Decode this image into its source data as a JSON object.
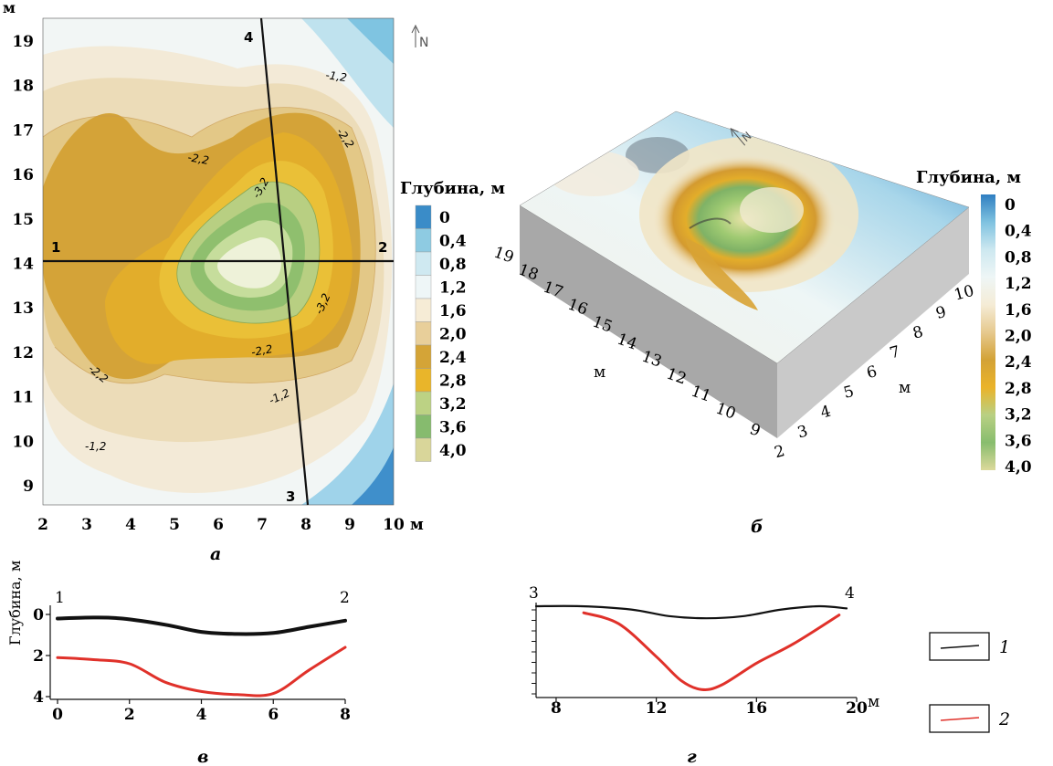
{
  "map_panel": {
    "unit_y": "м",
    "unit_x": "м",
    "x_ticks": [
      "2",
      "3",
      "4",
      "5",
      "6",
      "7",
      "8",
      "9",
      "10"
    ],
    "y_ticks": [
      "19",
      "18",
      "17",
      "16",
      "15",
      "14",
      "13",
      "12",
      "11",
      "10",
      "9"
    ],
    "north": "N",
    "profile_points": [
      "1",
      "2",
      "3",
      "4"
    ],
    "contour_labels": [
      "-1,2",
      "-2,2",
      "-3,2",
      "-2,2",
      "-3,2",
      "-2,2",
      "-2,2",
      "-1,2",
      "-1,2"
    ],
    "caption": "а"
  },
  "legend": {
    "title": "Глубина, м",
    "levels": [
      "0",
      "0,4",
      "0,8",
      "1,2",
      "1,6",
      "2,0",
      "2,4",
      "2,8",
      "3,2",
      "3,6",
      "4,0"
    ],
    "colors": [
      "#3a8cc8",
      "#8ecbe2",
      "#cfe9f1",
      "#eef6f7",
      "#f6ecd6",
      "#e8cf9a",
      "#d4a437",
      "#e9b52a",
      "#bcd284",
      "#86bb6e",
      "#d9d69a"
    ]
  },
  "block_panel": {
    "north": "N",
    "y_axis_ticks": [
      "19",
      "18",
      "17",
      "16",
      "15",
      "14",
      "13",
      "12",
      "11",
      "10",
      "9"
    ],
    "y_axis_unit": "м",
    "x_axis_ticks": [
      "2",
      "3",
      "4",
      "5",
      "6",
      "7",
      "8",
      "9",
      "10"
    ],
    "x_axis_unit": "м",
    "caption": "б"
  },
  "profile_v": {
    "points": [
      "1",
      "2"
    ],
    "ylabel": "Глубина, м",
    "caption": "в"
  },
  "profile_g": {
    "points": [
      "3",
      "4"
    ],
    "x_unit": "м",
    "caption": "г"
  },
  "key": {
    "items": [
      {
        "label": "1",
        "color": "#111111"
      },
      {
        "label": "2",
        "color": "#e0312a"
      }
    ]
  },
  "chart_data": [
    {
      "type": "heatmap",
      "xlim": [
        2,
        10
      ],
      "ylim": [
        8.5,
        19.5
      ],
      "colorbar_levels": [
        0,
        0.4,
        0.8,
        1.2,
        1.6,
        2.0,
        2.4,
        2.8,
        3.2,
        3.6,
        4.0
      ],
      "colorbar_label": "Глубина, м",
      "profiles": [
        {
          "name": "1-2",
          "from": [
            2,
            14
          ],
          "to": [
            10,
            14
          ]
        },
        {
          "name": "3-4",
          "from": [
            8.05,
            8.5
          ],
          "to": [
            6.95,
            19.5
          ]
        }
      ],
      "contours": [
        -1.2,
        -2.2,
        -3.2
      ]
    },
    {
      "type": "line",
      "xlim": [
        0,
        8
      ],
      "ylim": [
        0,
        4
      ],
      "x_ticks": [
        0,
        2,
        4,
        6,
        8
      ],
      "y_ticks": [
        0,
        2,
        4
      ],
      "ylabel": "Глубина, м",
      "series": [
        {
          "name": "1",
          "x": [
            0,
            1,
            1.8,
            3,
            4,
            5,
            6,
            7,
            8
          ],
          "y": [
            0.2,
            0.15,
            0.2,
            0.5,
            0.85,
            0.95,
            0.9,
            0.6,
            0.3
          ]
        },
        {
          "name": "2",
          "x": [
            0,
            1,
            2,
            3,
            4,
            5,
            6,
            7,
            8
          ],
          "y": [
            2.1,
            2.2,
            2.4,
            3.3,
            3.75,
            3.9,
            3.85,
            2.7,
            1.6
          ]
        }
      ]
    },
    {
      "type": "line",
      "xlim": [
        7.2,
        20
      ],
      "x_ticks": [
        8,
        12,
        16,
        20
      ],
      "series": [
        {
          "name": "1",
          "x": [
            7.2,
            9,
            11,
            12.5,
            14,
            15.5,
            17,
            18.5,
            19.6
          ],
          "y": [
            0.0,
            0.0,
            0.15,
            0.45,
            0.55,
            0.45,
            0.15,
            0.0,
            0.1
          ]
        },
        {
          "name": "2",
          "x": [
            9.1,
            10.5,
            12,
            13,
            13.8,
            14.6,
            16,
            17.5,
            19.3
          ],
          "y": [
            0.3,
            0.8,
            2.3,
            3.4,
            3.8,
            3.6,
            2.6,
            1.7,
            0.4
          ]
        }
      ]
    }
  ]
}
